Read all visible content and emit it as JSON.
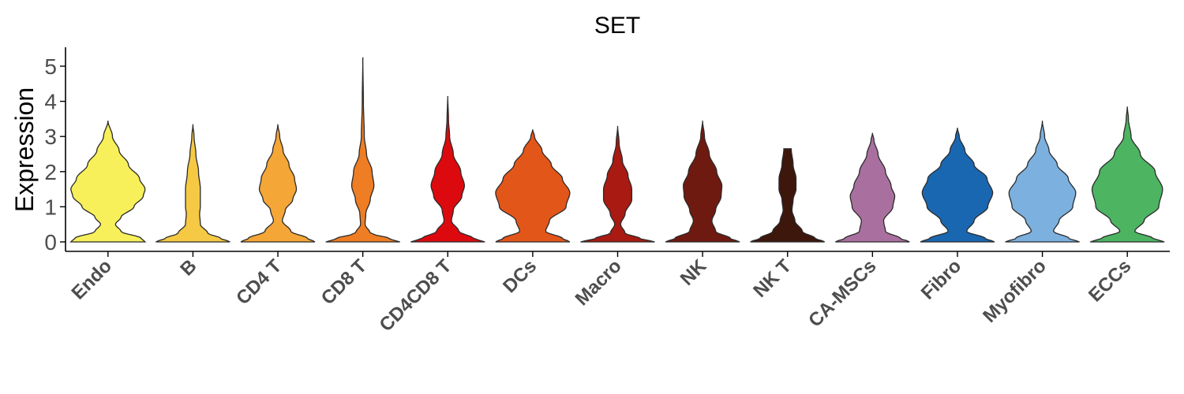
{
  "chart_data": {
    "type": "violin",
    "title": "SET",
    "xlabel": "",
    "ylabel": "Expression",
    "ylim": [
      -0.25,
      5.5
    ],
    "yticks": [
      "0",
      "1",
      "2",
      "3",
      "4",
      "5"
    ],
    "grid": false,
    "legend": "none",
    "categories": [
      "Endo",
      "B",
      "CD4 T",
      "CD8 T",
      "CD4CD8 T",
      "DCs",
      "Macro",
      "NK",
      "NK T",
      "CA-MSCs",
      "Fibro",
      "Myofibro",
      "ECCs"
    ],
    "series": [
      {
        "category": "Endo",
        "color": "#f7f05a",
        "max": 3.45,
        "flat_top": false,
        "profile": [
          [
            0,
            1
          ],
          [
            0.1,
            0.9
          ],
          [
            0.3,
            0.35
          ],
          [
            0.5,
            0.2
          ],
          [
            0.7,
            0.35
          ],
          [
            1.0,
            0.7
          ],
          [
            1.3,
            0.95
          ],
          [
            1.5,
            1.0
          ],
          [
            1.8,
            0.85
          ],
          [
            2.2,
            0.55
          ],
          [
            2.6,
            0.3
          ],
          [
            3.0,
            0.12
          ],
          [
            3.45,
            0
          ]
        ]
      },
      {
        "category": "B",
        "color": "#f6c944",
        "max": 3.35,
        "flat_top": false,
        "profile": [
          [
            0,
            1
          ],
          [
            0.1,
            0.75
          ],
          [
            0.25,
            0.4
          ],
          [
            0.5,
            0.2
          ],
          [
            0.8,
            0.18
          ],
          [
            1.0,
            0.2
          ],
          [
            1.5,
            0.2
          ],
          [
            2.0,
            0.15
          ],
          [
            2.5,
            0.08
          ],
          [
            3.0,
            0.03
          ],
          [
            3.35,
            0
          ]
        ]
      },
      {
        "category": "CD4 T",
        "color": "#f4a637",
        "max": 3.35,
        "flat_top": false,
        "profile": [
          [
            0,
            1
          ],
          [
            0.1,
            0.8
          ],
          [
            0.3,
            0.35
          ],
          [
            0.6,
            0.12
          ],
          [
            0.9,
            0.2
          ],
          [
            1.2,
            0.4
          ],
          [
            1.5,
            0.5
          ],
          [
            1.8,
            0.45
          ],
          [
            2.2,
            0.3
          ],
          [
            2.6,
            0.14
          ],
          [
            3.0,
            0.05
          ],
          [
            3.35,
            0
          ]
        ]
      },
      {
        "category": "CD8 T",
        "color": "#ef7d24",
        "max": 5.25,
        "flat_top": false,
        "profile": [
          [
            0,
            1
          ],
          [
            0.1,
            0.7
          ],
          [
            0.25,
            0.2
          ],
          [
            0.5,
            0.06
          ],
          [
            0.8,
            0.08
          ],
          [
            1.2,
            0.2
          ],
          [
            1.6,
            0.3
          ],
          [
            2.0,
            0.25
          ],
          [
            2.5,
            0.1
          ],
          [
            3.0,
            0.04
          ],
          [
            4.0,
            0.015
          ],
          [
            5.25,
            0
          ]
        ]
      },
      {
        "category": "CD4CD8 T",
        "color": "#dc0a0e",
        "max": 4.15,
        "flat_top": false,
        "profile": [
          [
            0,
            1
          ],
          [
            0.1,
            0.7
          ],
          [
            0.3,
            0.3
          ],
          [
            0.6,
            0.1
          ],
          [
            0.9,
            0.15
          ],
          [
            1.3,
            0.38
          ],
          [
            1.6,
            0.45
          ],
          [
            2.0,
            0.35
          ],
          [
            2.5,
            0.15
          ],
          [
            3.0,
            0.05
          ],
          [
            3.5,
            0.02
          ],
          [
            4.15,
            0
          ]
        ]
      },
      {
        "category": "DCs",
        "color": "#e35619",
        "max": 3.2,
        "flat_top": false,
        "profile": [
          [
            0,
            1
          ],
          [
            0.1,
            0.8
          ],
          [
            0.3,
            0.35
          ],
          [
            0.6,
            0.45
          ],
          [
            1.0,
            0.9
          ],
          [
            1.4,
            1.0
          ],
          [
            1.8,
            0.8
          ],
          [
            2.2,
            0.5
          ],
          [
            2.6,
            0.25
          ],
          [
            3.0,
            0.05
          ],
          [
            3.2,
            0
          ]
        ]
      },
      {
        "category": "Macro",
        "color": "#a81a12",
        "max": 3.3,
        "flat_top": false,
        "profile": [
          [
            0,
            1
          ],
          [
            0.1,
            0.6
          ],
          [
            0.25,
            0.2
          ],
          [
            0.5,
            0.08
          ],
          [
            0.8,
            0.2
          ],
          [
            1.2,
            0.38
          ],
          [
            1.5,
            0.38
          ],
          [
            1.9,
            0.28
          ],
          [
            2.3,
            0.13
          ],
          [
            2.8,
            0.04
          ],
          [
            3.3,
            0
          ]
        ]
      },
      {
        "category": "NK",
        "color": "#6f1a10",
        "max": 3.45,
        "flat_top": false,
        "profile": [
          [
            0,
            1
          ],
          [
            0.1,
            0.75
          ],
          [
            0.3,
            0.35
          ],
          [
            0.6,
            0.25
          ],
          [
            0.9,
            0.35
          ],
          [
            1.3,
            0.5
          ],
          [
            1.6,
            0.52
          ],
          [
            2.0,
            0.38
          ],
          [
            2.5,
            0.18
          ],
          [
            3.0,
            0.05
          ],
          [
            3.45,
            0
          ]
        ]
      },
      {
        "category": "NK T",
        "color": "#3d160c",
        "max": 2.65,
        "flat_top": true,
        "profile": [
          [
            0,
            1
          ],
          [
            0.1,
            0.75
          ],
          [
            0.3,
            0.4
          ],
          [
            0.6,
            0.2
          ],
          [
            0.9,
            0.12
          ],
          [
            1.2,
            0.15
          ],
          [
            1.5,
            0.23
          ],
          [
            1.8,
            0.23
          ],
          [
            2.2,
            0.15
          ],
          [
            2.65,
            0.1
          ]
        ]
      },
      {
        "category": "CA-MSCs",
        "color": "#a9709f",
        "max": 3.1,
        "flat_top": false,
        "profile": [
          [
            0,
            1
          ],
          [
            0.1,
            0.75
          ],
          [
            0.3,
            0.35
          ],
          [
            0.6,
            0.3
          ],
          [
            1.0,
            0.55
          ],
          [
            1.3,
            0.6
          ],
          [
            1.6,
            0.5
          ],
          [
            2.0,
            0.35
          ],
          [
            2.5,
            0.15
          ],
          [
            2.9,
            0.04
          ],
          [
            3.1,
            0
          ]
        ]
      },
      {
        "category": "Fibro",
        "color": "#1a67b1",
        "max": 3.25,
        "flat_top": false,
        "profile": [
          [
            0,
            1
          ],
          [
            0.1,
            0.75
          ],
          [
            0.3,
            0.25
          ],
          [
            0.6,
            0.45
          ],
          [
            1.0,
            0.82
          ],
          [
            1.4,
            0.95
          ],
          [
            1.8,
            0.8
          ],
          [
            2.2,
            0.45
          ],
          [
            2.6,
            0.2
          ],
          [
            3.0,
            0.05
          ],
          [
            3.25,
            0
          ]
        ]
      },
      {
        "category": "Myofibro",
        "color": "#7cb0df",
        "max": 3.45,
        "flat_top": false,
        "profile": [
          [
            0,
            1
          ],
          [
            0.1,
            0.72
          ],
          [
            0.3,
            0.3
          ],
          [
            0.6,
            0.45
          ],
          [
            1.0,
            0.82
          ],
          [
            1.4,
            0.9
          ],
          [
            1.8,
            0.7
          ],
          [
            2.2,
            0.4
          ],
          [
            2.6,
            0.18
          ],
          [
            3.0,
            0.06
          ],
          [
            3.45,
            0
          ]
        ]
      },
      {
        "category": "ECCs",
        "color": "#4db462",
        "max": 3.85,
        "flat_top": false,
        "profile": [
          [
            0,
            1
          ],
          [
            0.1,
            0.7
          ],
          [
            0.3,
            0.2
          ],
          [
            0.6,
            0.45
          ],
          [
            1.0,
            0.85
          ],
          [
            1.5,
            0.95
          ],
          [
            2.0,
            0.75
          ],
          [
            2.5,
            0.35
          ],
          [
            3.0,
            0.1
          ],
          [
            3.5,
            0.03
          ],
          [
            3.85,
            0
          ]
        ]
      }
    ]
  }
}
